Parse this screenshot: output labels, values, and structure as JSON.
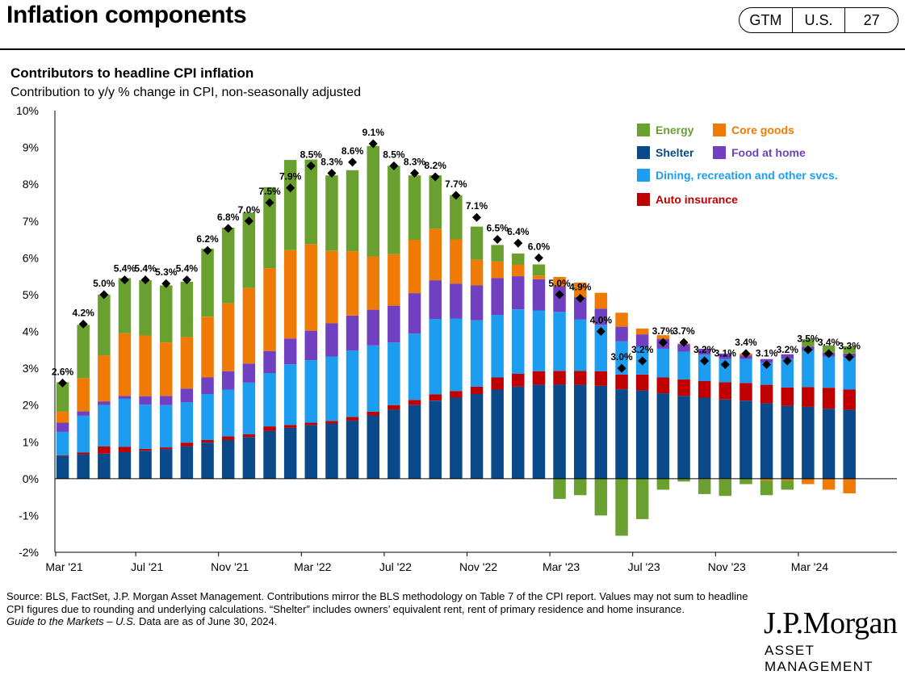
{
  "header": {
    "title": "Inflation components",
    "pill": [
      "GTM",
      "U.S.",
      "27"
    ]
  },
  "chart_data": {
    "type": "bar",
    "stacked": true,
    "title": "Contributors to headline CPI inflation",
    "subtitle": "Contribution to y/y % change in CPI, non-seasonally adjusted",
    "ylim": [
      -2,
      10
    ],
    "yticks": [
      "-2%",
      "-1%",
      "0%",
      "1%",
      "2%",
      "3%",
      "4%",
      "5%",
      "6%",
      "7%",
      "8%",
      "9%",
      "10%"
    ],
    "xtick_labels": [
      {
        "index": 0,
        "label": "Mar '21"
      },
      {
        "index": 4,
        "label": "Jul '21"
      },
      {
        "index": 8,
        "label": "Nov '21"
      },
      {
        "index": 12,
        "label": "Mar '22"
      },
      {
        "index": 16,
        "label": "Jul '22"
      },
      {
        "index": 20,
        "label": "Nov '22"
      },
      {
        "index": 24,
        "label": "Mar '23"
      },
      {
        "index": 28,
        "label": "Jul '23"
      },
      {
        "index": 32,
        "label": "Nov '23"
      },
      {
        "index": 36,
        "label": "Mar '24"
      }
    ],
    "categories": [
      "Mar '21",
      "Apr '21",
      "May '21",
      "Jun '21",
      "Jul '21",
      "Aug '21",
      "Sep '21",
      "Oct '21",
      "Nov '21",
      "Dec '21",
      "Jan '22",
      "Feb '22",
      "Mar '22",
      "Apr '22",
      "May '22",
      "Jun '22",
      "Jul '22",
      "Aug '22",
      "Sep '22",
      "Oct '22",
      "Nov '22",
      "Dec '22",
      "Jan '23",
      "Feb '23",
      "Mar '23",
      "Apr '23",
      "May '23",
      "Jun '23",
      "Jul '23",
      "Aug '23",
      "Sep '23",
      "Oct '23",
      "Nov '23",
      "Dec '23",
      "Jan '24",
      "Feb '24",
      "Mar '24",
      "Apr '24",
      "May '24"
    ],
    "series": [
      {
        "name": "Shelter",
        "color": "#0a4a8a",
        "values": [
          0.62,
          0.66,
          0.68,
          0.72,
          0.76,
          0.8,
          0.88,
          0.98,
          1.05,
          1.13,
          1.3,
          1.38,
          1.45,
          1.5,
          1.58,
          1.72,
          1.88,
          2.0,
          2.12,
          2.2,
          2.3,
          2.42,
          2.5,
          2.55,
          2.56,
          2.55,
          2.52,
          2.43,
          2.4,
          2.32,
          2.25,
          2.2,
          2.15,
          2.12,
          2.05,
          1.98,
          1.95,
          1.9,
          1.87
        ]
      },
      {
        "name": "Auto insurance",
        "color": "#c00000",
        "values": [
          0.02,
          0.05,
          0.2,
          0.15,
          0.05,
          0.05,
          0.1,
          0.07,
          0.1,
          0.08,
          0.12,
          0.08,
          0.07,
          0.07,
          0.1,
          0.1,
          0.12,
          0.14,
          0.17,
          0.18,
          0.2,
          0.33,
          0.35,
          0.37,
          0.37,
          0.38,
          0.4,
          0.4,
          0.43,
          0.43,
          0.45,
          0.45,
          0.47,
          0.48,
          0.5,
          0.5,
          0.54,
          0.57,
          0.55
        ]
      },
      {
        "name": "Dining, recreation and other svcs.",
        "color": "#1c9df0",
        "values": [
          0.63,
          1.0,
          1.12,
          1.3,
          1.2,
          1.15,
          1.1,
          1.25,
          1.27,
          1.4,
          1.45,
          1.65,
          1.7,
          1.75,
          1.8,
          1.8,
          1.7,
          1.8,
          2.05,
          1.97,
          1.8,
          1.7,
          1.75,
          1.65,
          1.6,
          1.4,
          1.25,
          0.9,
          0.75,
          0.78,
          0.75,
          0.72,
          0.63,
          0.65,
          0.6,
          0.78,
          1.0,
          0.85,
          0.88
        ]
      },
      {
        "name": "Food at home",
        "color": "#7040c0",
        "values": [
          0.25,
          0.12,
          0.1,
          0.08,
          0.23,
          0.25,
          0.37,
          0.45,
          0.5,
          0.52,
          0.6,
          0.7,
          0.8,
          0.9,
          0.95,
          0.97,
          1.0,
          1.1,
          1.05,
          0.95,
          0.95,
          1.0,
          0.9,
          0.85,
          0.7,
          0.6,
          0.45,
          0.4,
          0.34,
          0.27,
          0.2,
          0.16,
          0.15,
          0.1,
          0.1,
          0.12,
          0.1,
          0.1,
          0.1
        ]
      },
      {
        "name": "Core goods",
        "color": "#f07a06",
        "values": [
          0.3,
          0.9,
          1.25,
          1.7,
          1.65,
          1.45,
          1.4,
          1.65,
          1.85,
          2.05,
          2.25,
          2.4,
          2.35,
          1.97,
          1.75,
          1.45,
          1.4,
          1.45,
          1.4,
          1.2,
          0.7,
          0.45,
          0.32,
          0.1,
          0.25,
          0.4,
          0.43,
          0.38,
          0.16,
          0.1,
          0.02,
          -0.02,
          -0.02,
          0.05,
          -0.05,
          -0.05,
          -0.15,
          -0.3,
          -0.4
        ]
      },
      {
        "name": "Energy",
        "color": "#6aa030",
        "values": [
          0.8,
          1.45,
          1.65,
          1.5,
          1.5,
          1.55,
          1.5,
          1.85,
          2.05,
          2.05,
          2.2,
          2.45,
          2.3,
          2.05,
          2.2,
          3.0,
          2.4,
          1.75,
          1.45,
          1.2,
          0.9,
          0.45,
          0.3,
          0.3,
          -0.55,
          -0.45,
          -1.0,
          -1.55,
          -1.1,
          -0.3,
          -0.08,
          -0.4,
          -0.45,
          -0.15,
          -0.4,
          -0.25,
          0.2,
          0.2,
          0.2
        ]
      }
    ],
    "headline": {
      "values": [
        2.6,
        4.2,
        5.0,
        5.4,
        5.4,
        5.3,
        5.4,
        6.2,
        6.8,
        7.0,
        7.5,
        7.9,
        8.5,
        8.3,
        8.6,
        9.1,
        8.5,
        8.3,
        8.2,
        7.7,
        7.1,
        6.5,
        6.4,
        6.0,
        5.0,
        4.9,
        4.0,
        3.0,
        3.2,
        3.7,
        3.7,
        3.2,
        3.1,
        3.4,
        3.1,
        3.2,
        3.5,
        3.4,
        3.3
      ],
      "labels": [
        "2.6%",
        "4.2%",
        "5.0%",
        "5.4%",
        "5.4%",
        "5.3%",
        "5.4%",
        "6.2%",
        "6.8%",
        "7.0%",
        "7.5%",
        "7.9%",
        "8.5%",
        "8.3%",
        "8.6%",
        "9.1%",
        "8.5%",
        "8.3%",
        "8.2%",
        "7.7%",
        "7.1%",
        "6.5%",
        "6.4%",
        "6.0%",
        "5.0%",
        "4.9%",
        "4.0%",
        "3.0%",
        "3.2%",
        "3.7%",
        "3.7%",
        "3.2%",
        "3.1%",
        "3.4%",
        "3.1%",
        "3.2%",
        "3.5%",
        "3.4%",
        "3.3%"
      ]
    },
    "legend": {
      "placement": "top-right",
      "entries": [
        {
          "label": "Energy",
          "color": "#6aa030",
          "text_color": "#6aa030"
        },
        {
          "label": "Core goods",
          "color": "#f07a06",
          "text_color": "#f07a06"
        },
        {
          "label": "Shelter",
          "color": "#0a4a8a",
          "text_color": "#0a4a8a"
        },
        {
          "label": "Food  at home",
          "color": "#7040c0",
          "text_color": "#7040c0"
        },
        {
          "label": "Dining,  recreation and other svcs.",
          "color": "#1c9df0",
          "text_color": "#1c9df0"
        },
        {
          "label": "Auto  insurance",
          "color": "#c00000",
          "text_color": "#c00000"
        }
      ]
    }
  },
  "footnote": {
    "source": "Source: BLS, FactSet, J.P. Morgan Asset Management. Contributions mirror the BLS methodology on Table 7 of the CPI report. Values may not sum to headline CPI figures due to rounding and underlying calculations. “Shelter” includes owners’ equivalent rent, rent of primary residence and home insurance.",
    "guide": "Guide to the Markets – U.S.",
    "asof": " Data are as of June 30, 2024."
  },
  "brand": {
    "logo": "J.P.Morgan",
    "sub": "ASSET MANAGEMENT"
  }
}
